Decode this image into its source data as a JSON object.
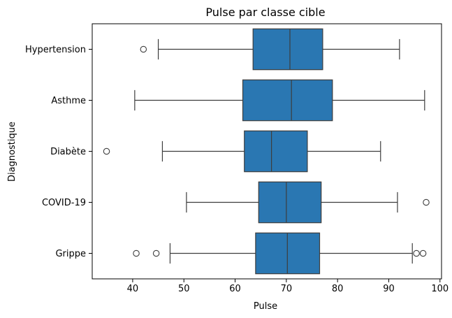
{
  "chart_data": {
    "type": "boxplot",
    "orientation": "horizontal",
    "title": "Pulse par classe cible",
    "xlabel": "Pulse",
    "ylabel": "Diagnostique",
    "xlim": [
      32.1,
      100.3
    ],
    "xticks": [
      40,
      50,
      60,
      70,
      80,
      90,
      100
    ],
    "grid": false,
    "color": "#2a77b2",
    "categories": [
      "Hypertension",
      "Asthme",
      "Diabète",
      "COVID-19",
      "Grippe"
    ],
    "boxes": [
      {
        "category": "Hypertension",
        "whisker_low": 45.0,
        "q1": 63.5,
        "median": 70.7,
        "q3": 77.1,
        "whisker_high": 92.1,
        "outliers": [
          42.1
        ]
      },
      {
        "category": "Asthme",
        "whisker_low": 40.4,
        "q1": 61.5,
        "median": 71.0,
        "q3": 79.0,
        "whisker_high": 97.0,
        "outliers": []
      },
      {
        "category": "Diabète",
        "whisker_low": 45.8,
        "q1": 61.8,
        "median": 67.1,
        "q3": 74.1,
        "whisker_high": 88.4,
        "outliers": [
          34.9
        ]
      },
      {
        "category": "COVID-19",
        "whisker_low": 50.5,
        "q1": 64.6,
        "median": 70.0,
        "q3": 76.8,
        "whisker_high": 91.7,
        "outliers": [
          97.3
        ]
      },
      {
        "category": "Grippe",
        "whisker_low": 47.3,
        "q1": 64.0,
        "median": 70.2,
        "q3": 76.5,
        "whisker_high": 94.6,
        "outliers": [
          40.7,
          44.6,
          95.4,
          96.7
        ]
      }
    ]
  }
}
